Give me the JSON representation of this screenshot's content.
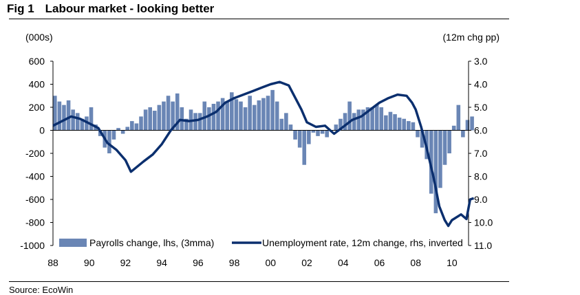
{
  "header": {
    "fig": "Fig 1",
    "title": "Labour market - looking better"
  },
  "source": "Source: EcoWin",
  "chart_data": {
    "type": "bar+line",
    "title": "Labour market - looking better",
    "ylabel_left": "(000s)",
    "ylabel_right": "(12m chg pp)",
    "ylim_left": [
      -1000,
      600
    ],
    "ylim_right": [
      11.0,
      3.0
    ],
    "right_inverted": true,
    "yticks_left": [
      "600",
      "400",
      "200",
      "0",
      "-200",
      "-400",
      "-600",
      "-800",
      "-1000"
    ],
    "yticks_right": [
      "3.0",
      "4.0",
      "5.0",
      "6.0",
      "7.0",
      "8.0",
      "9.0",
      "10.0",
      "11.0"
    ],
    "xticks": [
      "88",
      "90",
      "92",
      "94",
      "96",
      "98",
      "00",
      "02",
      "04",
      "06",
      "08",
      "10"
    ],
    "xlim": [
      1988,
      2011.3
    ],
    "legend": {
      "placement": "bottom",
      "entries": [
        "Payrolls change, lhs, (3mma)",
        "Unemployment rate, 12m change, rhs, inverted"
      ]
    },
    "colors": {
      "bars": "#6a86b5",
      "line": "#0b2f6e"
    },
    "bars": {
      "name": "Payrolls change, lhs, (3mma)",
      "start": 1988.0,
      "step": 0.25,
      "values": [
        300,
        250,
        220,
        260,
        180,
        150,
        100,
        120,
        200,
        50,
        -50,
        -150,
        -200,
        -80,
        20,
        -30,
        30,
        80,
        60,
        120,
        180,
        200,
        170,
        220,
        250,
        300,
        250,
        320,
        200,
        100,
        180,
        150,
        150,
        250,
        200,
        230,
        250,
        280,
        250,
        330,
        270,
        250,
        200,
        300,
        220,
        260,
        280,
        300,
        350,
        250,
        100,
        150,
        50,
        -80,
        -150,
        -300,
        -120,
        -20,
        -50,
        -30,
        -60,
        0,
        50,
        100,
        150,
        250,
        150,
        180,
        180,
        200,
        200,
        220,
        200,
        130,
        160,
        140,
        110,
        100,
        80,
        70,
        -60,
        -150,
        -250,
        -550,
        -720,
        -500,
        -300,
        -200,
        40,
        220,
        -60,
        90,
        120
      ]
    },
    "line": {
      "name": "Unemployment rate, 12m change, rhs, inverted",
      "x": [
        1988,
        1989,
        1989.5,
        1990,
        1990.5,
        1991,
        1991.5,
        1992,
        1992.3,
        1993,
        1993.5,
        1994,
        1994.5,
        1995,
        1995.5,
        1996,
        1996.5,
        1997,
        1997.5,
        1998,
        1998.5,
        1999,
        1999.5,
        2000,
        2000.5,
        2001,
        2001.3,
        2001.7,
        2002,
        2002.5,
        2003,
        2003.5,
        2004,
        2004.5,
        2005,
        2005.5,
        2006,
        2006.5,
        2007,
        2007.5,
        2007.8,
        2008,
        2008.3,
        2008.6,
        2009,
        2009.3,
        2009.6,
        2009.8,
        2010,
        2010.5,
        2010.8,
        2011,
        2011.2
      ],
      "y": [
        5.8,
        5.4,
        5.5,
        5.7,
        5.9,
        6.55,
        6.85,
        7.3,
        7.8,
        7.35,
        7.05,
        6.6,
        6.0,
        5.55,
        5.6,
        5.55,
        5.4,
        5.2,
        4.8,
        4.6,
        4.45,
        4.3,
        4.15,
        4.0,
        3.9,
        4.05,
        4.5,
        5.1,
        5.65,
        5.85,
        5.8,
        6.15,
        5.85,
        5.55,
        5.4,
        5.1,
        4.8,
        4.6,
        4.45,
        4.5,
        4.8,
        5.1,
        5.85,
        6.75,
        8.1,
        9.3,
        9.9,
        10.15,
        9.9,
        9.65,
        9.85,
        9.0,
        8.95
      ]
    }
  }
}
